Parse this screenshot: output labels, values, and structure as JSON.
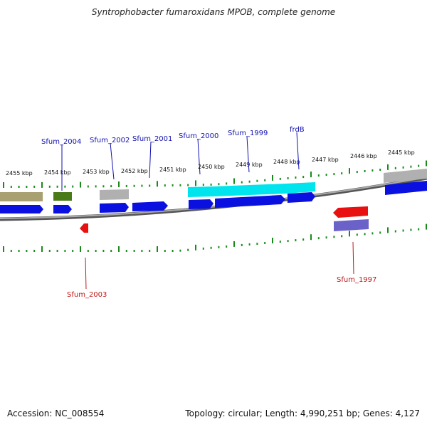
{
  "title": "Syntrophobacter fumaroxidans MPOB, complete genome",
  "footer": {
    "accession": "Accession: NC_008554",
    "summary": "Topology: circular; Length: 4,990,251 bp; Genes: 4,127"
  },
  "scale_labels": [
    "2455 kbp",
    "2454 kbp",
    "2453 kbp",
    "2452 kbp",
    "2451 kbp",
    "2450 kbp",
    "2449 kbp",
    "2448 kbp",
    "2447 kbp",
    "2446 kbp",
    "2445 kbp"
  ],
  "gene_labels": {
    "forward_strand": [
      "Sfum_2004",
      "Sfum_2002",
      "Sfum_2001",
      "Sfum_2000",
      "Sfum_1999",
      "frdB"
    ],
    "reverse_strand": [
      "Sfum_2003",
      "Sfum_1997"
    ]
  },
  "colors": {
    "forward_label": "#1010b0",
    "reverse_label": "#c01818",
    "cds": "#0a10e0",
    "highlight": "#00e4ee",
    "gray_feature": "#a8a8a8",
    "olive_feature": "#a8a070",
    "green_feature": "#4a7a18",
    "reverse_gene": "#e81010",
    "reverse_cds": "#6a62c8",
    "tick": "#1a8a1a",
    "backbone": "#888888"
  }
}
